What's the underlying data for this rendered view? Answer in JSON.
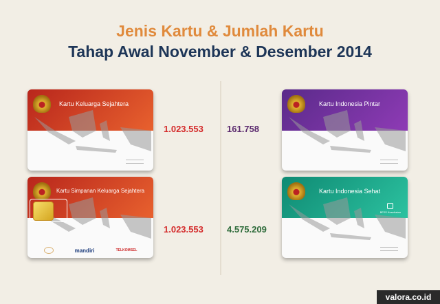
{
  "title": {
    "line1": "Jenis Kartu & Jumlah Kartu",
    "line2": "Tahap Awal November & Desember 2014"
  },
  "cards": [
    {
      "name": "Kartu Keluarga Sejahtera",
      "count": "1.023.553",
      "color": "#d9482a",
      "count_color": "#d42a2a"
    },
    {
      "name": "Kartu Simpanan Keluarga Sejahtera",
      "count": "1.023.553",
      "color": "#d9482a",
      "count_color": "#d42a2a",
      "logos": [
        "mandiri",
        "TELKOMSEL"
      ]
    },
    {
      "name": "Kartu Indonesia Pintar",
      "count": "161.758",
      "color": "#6a2f9a",
      "count_color": "#5b2a6e"
    },
    {
      "name": "Kartu Indonesia Sehat",
      "count": "4.575.209",
      "color": "#1fa58a",
      "count_color": "#2e6b3a",
      "badge": "BPJS Kesehatan"
    }
  ],
  "watermark": "valora.co.id"
}
